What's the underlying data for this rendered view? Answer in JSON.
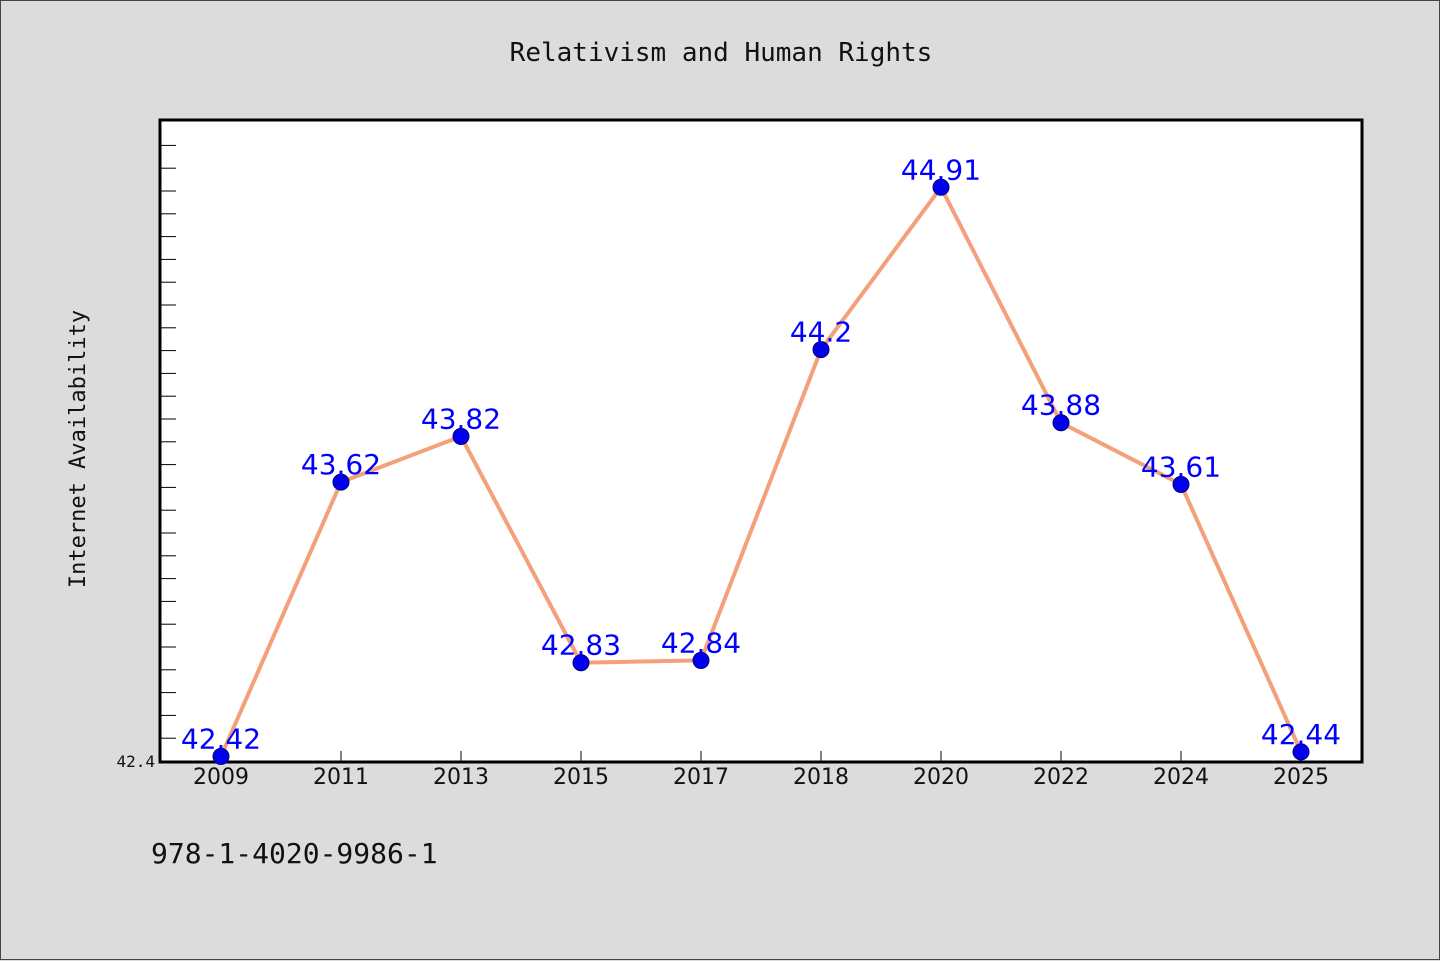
{
  "chart_data": {
    "type": "line",
    "title": "Relativism and Human Rights",
    "ylabel": "Internet Availability",
    "xlabel": "",
    "categories": [
      "2009",
      "2011",
      "2013",
      "2015",
      "2017",
      "2018",
      "2020",
      "2022",
      "2024",
      "2025"
    ],
    "series": [
      {
        "values": [
          42.42,
          43.62,
          43.82,
          42.83,
          42.84,
          44.2,
          44.91,
          43.88,
          43.61,
          42.44
        ],
        "labels": [
          "42.42",
          "43.62",
          "43.82",
          "42.83",
          "42.84",
          "44.2",
          "44.91",
          "43.88",
          "43.61",
          "42.44"
        ]
      }
    ],
    "ylim": [
      42.4,
      45.2
    ],
    "yticks": [
      "42.4"
    ],
    "grid": false,
    "colors": {
      "line": "#f4a07a",
      "marker": "#0000ee",
      "label": "#0000ff"
    }
  },
  "footer": {
    "isbn": "978-1-4020-9986-1"
  }
}
